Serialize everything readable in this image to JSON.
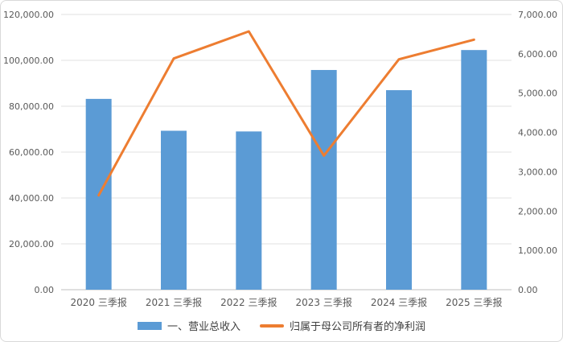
{
  "chart_data": {
    "type": "bar",
    "title": "",
    "categories": [
      "2020 三季报",
      "2021 三季报",
      "2022 三季报",
      "2023 三季报",
      "2024 三季报",
      "2025 三季报"
    ],
    "series": [
      {
        "name": "一、营业总收入",
        "type": "bar",
        "axis": "left",
        "color": "#5b9bd5",
        "values": [
          83200,
          69300,
          69000,
          95800,
          87000,
          104500
        ]
      },
      {
        "name": "归属于母公司所有者的净利润",
        "type": "line",
        "axis": "right",
        "color": "#ed7d31",
        "values": [
          2400,
          5880,
          6570,
          3410,
          5860,
          6360
        ]
      }
    ],
    "left_axis": {
      "min": 0,
      "max": 120000,
      "step": 20000,
      "tick_labels": [
        "0.00",
        "20,000.00",
        "40,000.00",
        "60,000.00",
        "80,000.00",
        "100,000.00",
        "120,000.00"
      ]
    },
    "right_axis": {
      "min": 0,
      "max": 7000,
      "step": 1000,
      "tick_labels": [
        "0.00",
        "1,000.00",
        "2,000.00",
        "3,000.00",
        "4,000.00",
        "5,000.00",
        "6,000.00",
        "7,000.00"
      ]
    },
    "grid": true,
    "legend_position": "bottom",
    "colors": {
      "bar": "#5b9bd5",
      "line": "#ed7d31",
      "grid": "#e2e2e2",
      "axis_line": "#bfbfbf",
      "axis_text": "#595959",
      "legend_text": "#404040",
      "border": "#d9d9d9",
      "background": "#ffffff"
    }
  }
}
